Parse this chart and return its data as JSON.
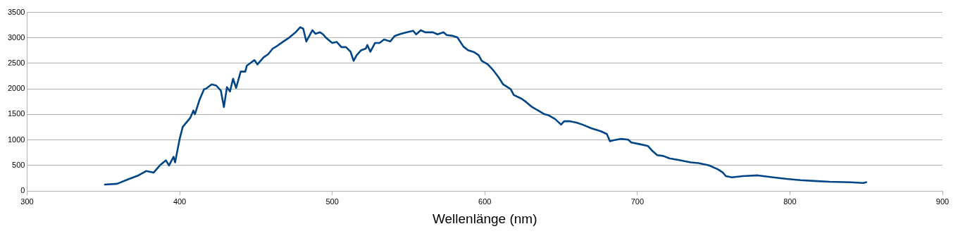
{
  "chart_data": {
    "type": "line",
    "xlabel": "Wellenlänge (nm)",
    "xlim": [
      300,
      900
    ],
    "xticks": [
      300,
      400,
      500,
      600,
      700,
      800,
      900
    ],
    "ylim": [
      0,
      3500
    ],
    "yticks": [
      0,
      500,
      1000,
      1500,
      2000,
      2500,
      3000,
      3500
    ],
    "grid": "y",
    "legend": false,
    "marker": "none",
    "line_style": "solid",
    "series": [
      {
        "color": "#004586",
        "x": [
          351,
          359,
          366,
          373,
          378,
          383,
          387,
          391,
          393,
          396,
          397,
          400,
          402,
          407,
          409,
          410,
          413,
          416,
          417,
          421,
          424,
          427,
          429,
          431,
          433,
          435,
          437,
          440,
          443,
          444,
          449,
          451,
          455,
          458,
          461,
          464,
          468,
          472,
          476,
          479,
          481,
          483,
          487,
          489,
          492,
          494,
          496,
          500,
          503,
          506,
          509,
          512,
          514,
          516,
          519,
          522,
          523,
          525,
          528,
          531,
          534,
          538,
          541,
          545,
          549,
          553,
          555,
          558,
          561,
          566,
          569,
          573,
          575,
          579,
          582,
          586,
          589,
          593,
          596,
          598,
          602,
          605,
          609,
          612,
          617,
          619,
          624,
          627,
          631,
          635,
          639,
          642,
          646,
          650,
          652,
          656,
          660,
          664,
          670,
          676,
          680,
          682,
          684,
          689,
          694,
          696,
          701,
          707,
          710,
          713,
          717,
          721,
          728,
          735,
          740,
          747,
          753,
          756,
          758,
          762,
          769,
          779,
          789,
          798,
          807,
          816,
          826,
          840,
          848,
          850
        ],
        "values": [
          125,
          140,
          225,
          305,
          390,
          360,
          500,
          600,
          500,
          670,
          560,
          1020,
          1255,
          1435,
          1575,
          1505,
          1785,
          1995,
          2000,
          2090,
          2065,
          1965,
          1645,
          2035,
          1950,
          2200,
          2020,
          2340,
          2340,
          2455,
          2565,
          2480,
          2620,
          2680,
          2790,
          2845,
          2930,
          3010,
          3110,
          3210,
          3180,
          2930,
          3150,
          3080,
          3110,
          3070,
          3000,
          2900,
          2920,
          2820,
          2820,
          2730,
          2550,
          2660,
          2760,
          2790,
          2860,
          2730,
          2900,
          2900,
          2970,
          2930,
          3040,
          3080,
          3110,
          3140,
          3070,
          3150,
          3110,
          3110,
          3070,
          3110,
          3055,
          3040,
          3010,
          2830,
          2760,
          2720,
          2660,
          2550,
          2480,
          2385,
          2230,
          2090,
          1995,
          1880,
          1810,
          1745,
          1645,
          1575,
          1505,
          1480,
          1410,
          1300,
          1365,
          1365,
          1340,
          1300,
          1225,
          1170,
          1115,
          975,
          990,
          1020,
          1005,
          950,
          920,
          880,
          780,
          700,
          685,
          640,
          600,
          560,
          545,
          500,
          420,
          360,
          290,
          265,
          290,
          305,
          265,
          235,
          210,
          195,
          180,
          170,
          155,
          170
        ]
      }
    ]
  }
}
